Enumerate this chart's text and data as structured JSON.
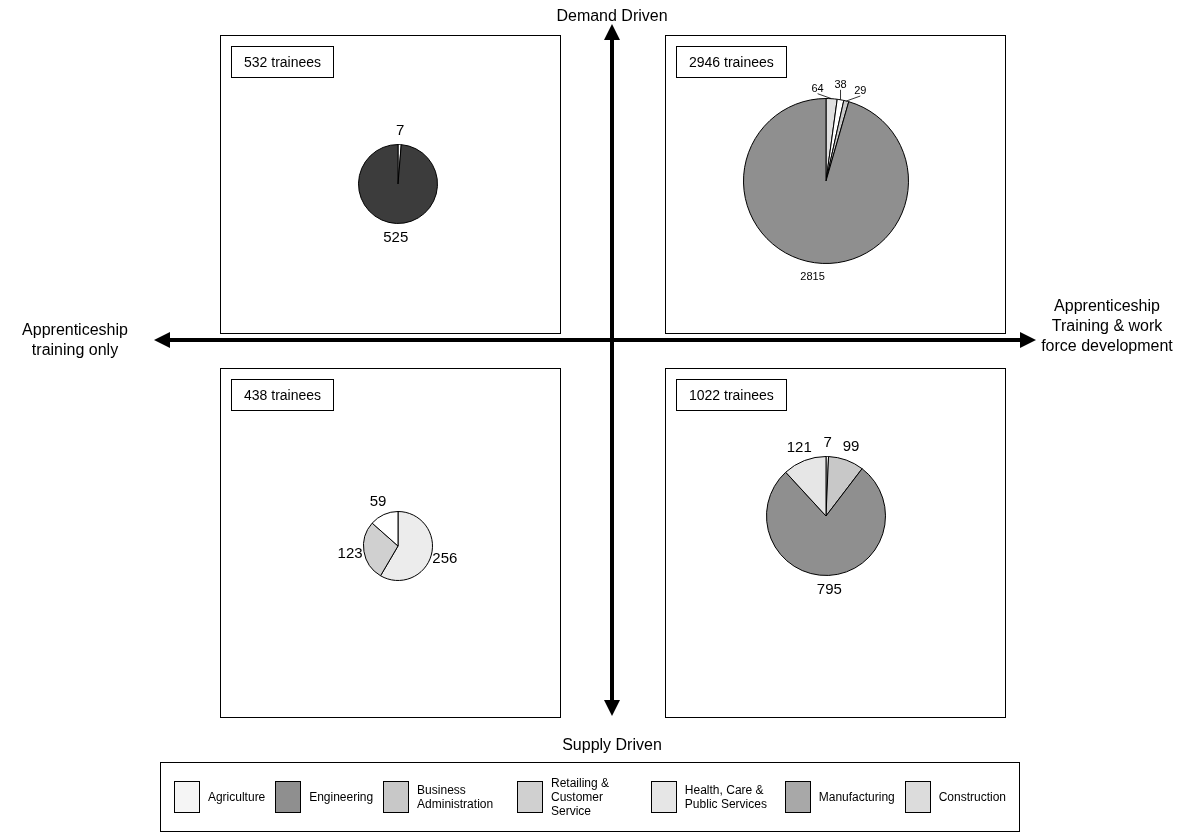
{
  "chart_data": [
    {
      "type": "pie",
      "title": "532 trainees",
      "categories": [
        null,
        null
      ],
      "values": [
        7,
        525
      ],
      "colors": [
        "#ffffff",
        "#3c3c3c"
      ],
      "data_labels": true
    },
    {
      "type": "pie",
      "title": "2946 trainees",
      "categories": [
        null,
        null,
        null,
        null
      ],
      "values": [
        64,
        38,
        29,
        2815
      ],
      "colors": [
        "#e0e0e0",
        "#ffffff",
        "#c8c8c8",
        "#8f8f8f"
      ],
      "data_labels": true
    },
    {
      "type": "pie",
      "title": "438 trainees",
      "categories": [
        null,
        null,
        null
      ],
      "values": [
        256,
        123,
        59
      ],
      "colors": [
        "#ececec",
        "#d0d0d0",
        "#ffffff"
      ],
      "data_labels": true
    },
    {
      "type": "pie",
      "title": "1022 trainees",
      "categories": [
        null,
        null,
        null,
        null
      ],
      "values": [
        7,
        99,
        795,
        121
      ],
      "colors": [
        "#ffffff",
        "#c8c8c8",
        "#8f8f8f",
        "#e6e6e6"
      ],
      "data_labels": true
    },
    {
      "type": "other",
      "annotations": [
        "Demand Driven",
        "Apprenticeship training only",
        "Apprenticeship Training & work force development",
        "Supply Driven"
      ],
      "categories": [
        "Agriculture",
        "Engineering",
        "Business Administration",
        "Retailing & Customer Service",
        "Health, Care & Public Services",
        "Manufacturing",
        "Construction"
      ],
      "colors": [
        "#f5f5f5",
        "#8f8f8f",
        "#c8c8c8",
        "#d0d0d0",
        "#e6e6e6",
        "#a8a8a8",
        "#dcdcdc"
      ]
    }
  ]
}
